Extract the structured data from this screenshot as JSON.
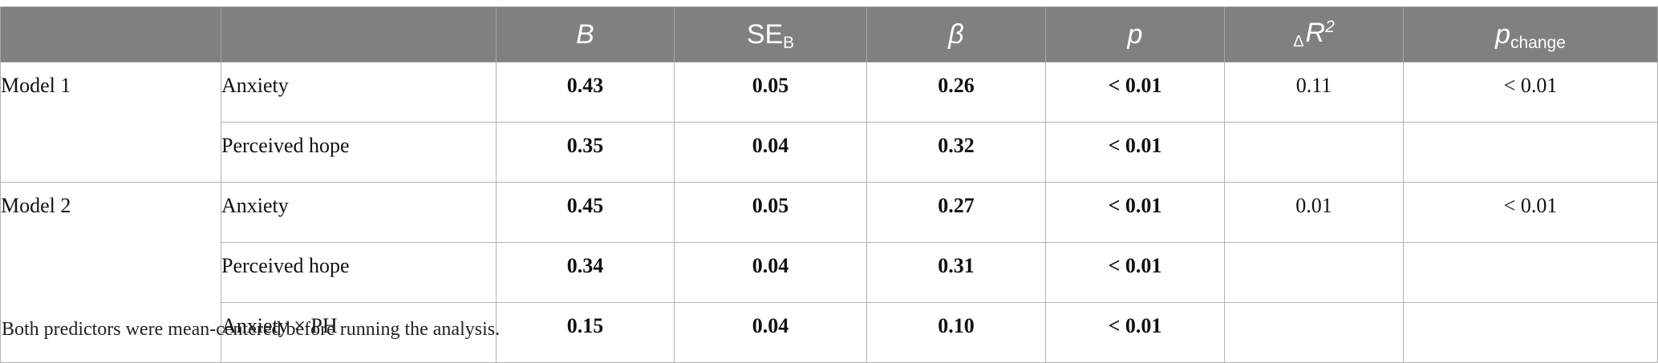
{
  "header": {
    "col_b": "B",
    "col_se": "SE",
    "col_se_sub": "B",
    "col_beta": "β",
    "col_p": "p",
    "col_dr2_delta": "Δ",
    "col_dr2": "R",
    "col_dr2_sup": "2",
    "col_pchange": "p",
    "col_pchange_sub": "change"
  },
  "models": [
    {
      "label": "Model 1",
      "delta_r2": "0.11",
      "p_change": "< 0.01",
      "rows": [
        {
          "predictor": "Anxiety",
          "b": "0.43",
          "se": "0.05",
          "beta": "0.26",
          "p": "< 0.01"
        },
        {
          "predictor": "Perceived hope",
          "b": "0.35",
          "se": "0.04",
          "beta": "0.32",
          "p": "< 0.01"
        }
      ]
    },
    {
      "label": "Model 2",
      "delta_r2": "0.01",
      "p_change": "< 0.01",
      "rows": [
        {
          "predictor": "Anxiety",
          "b": "0.45",
          "se": "0.05",
          "beta": "0.27",
          "p": "< 0.01"
        },
        {
          "predictor": "Perceived hope",
          "b": "0.34",
          "se": "0.04",
          "beta": "0.31",
          "p": "< 0.01"
        },
        {
          "predictor": "Anxiety × PH",
          "b": "0.15",
          "se": "0.04",
          "beta": "0.10",
          "p": "< 0.01"
        }
      ]
    }
  ],
  "note": "Both predictors were mean-centered before running the analysis."
}
